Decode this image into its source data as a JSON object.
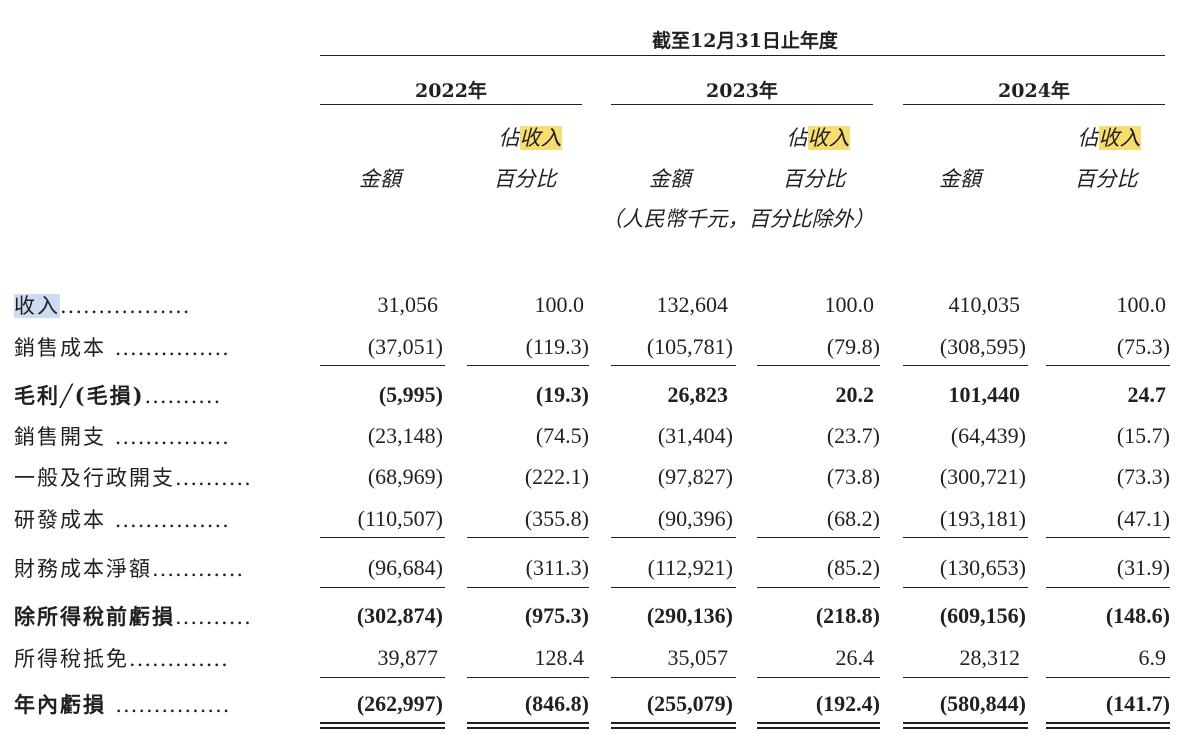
{
  "header": {
    "period": "截至12月31日止年度",
    "years": [
      "2022年",
      "2023年",
      "2024年"
    ],
    "col_amount": "金額",
    "col_pct_prefix": "佔",
    "col_pct_highlight": "收入",
    "col_pct_suffix": "百分比",
    "unit_note": "（人民幣千元，百分比除外）"
  },
  "rows": [
    {
      "label_highlight": "收入",
      "label": "",
      "dots": ".................",
      "values": [
        "31,056",
        "100.0",
        "132,604",
        "100.0",
        "410,035",
        "100.0"
      ],
      "bold": false
    },
    {
      "label_highlight": "",
      "label": "銷售成本",
      "dots": "...............",
      "values": [
        "(37,051)",
        "(119.3)",
        "(105,781)",
        "(79.8)",
        "(308,595)",
        "(75.3)"
      ],
      "bold": false
    },
    {
      "label_highlight": "",
      "label": "毛利╱(毛損)",
      "dots": "..........",
      "values": [
        "(5,995)",
        "(19.3)",
        "26,823",
        "20.2",
        "101,440",
        "24.7"
      ],
      "bold": true
    },
    {
      "label_highlight": "",
      "label": "銷售開支",
      "dots": "...............",
      "values": [
        "(23,148)",
        "(74.5)",
        "(31,404)",
        "(23.7)",
        "(64,439)",
        "(15.7)"
      ],
      "bold": false
    },
    {
      "label_highlight": "",
      "label": "一般及行政開支",
      "dots": "..........",
      "values": [
        "(68,969)",
        "(222.1)",
        "(97,827)",
        "(73.8)",
        "(300,721)",
        "(73.3)"
      ],
      "bold": false
    },
    {
      "label_highlight": "",
      "label": "研發成本",
      "dots": "...............",
      "values": [
        "(110,507)",
        "(355.8)",
        "(90,396)",
        "(68.2)",
        "(193,181)",
        "(47.1)"
      ],
      "bold": false
    },
    {
      "label_highlight": "",
      "label": "財務成本淨額",
      "dots": "............",
      "values": [
        "(96,684)",
        "(311.3)",
        "(112,921)",
        "(85.2)",
        "(130,653)",
        "(31.9)"
      ],
      "bold": false
    },
    {
      "label_highlight": "",
      "label": "除所得稅前虧損",
      "dots": "..........",
      "values": [
        "(302,874)",
        "(975.3)",
        "(290,136)",
        "(218.8)",
        "(609,156)",
        "(148.6)"
      ],
      "bold": true
    },
    {
      "label_highlight": "",
      "label": "所得稅抵免",
      "dots": ".............",
      "values": [
        "39,877",
        "128.4",
        "35,057",
        "26.4",
        "28,312",
        "6.9"
      ],
      "bold": false
    },
    {
      "label_highlight": "",
      "label": "年內虧損",
      "dots": "...............",
      "values": [
        "(262,997)",
        "(846.8)",
        "(255,079)",
        "(192.4)",
        "(580,844)",
        "(141.7)"
      ],
      "bold": true
    }
  ]
}
